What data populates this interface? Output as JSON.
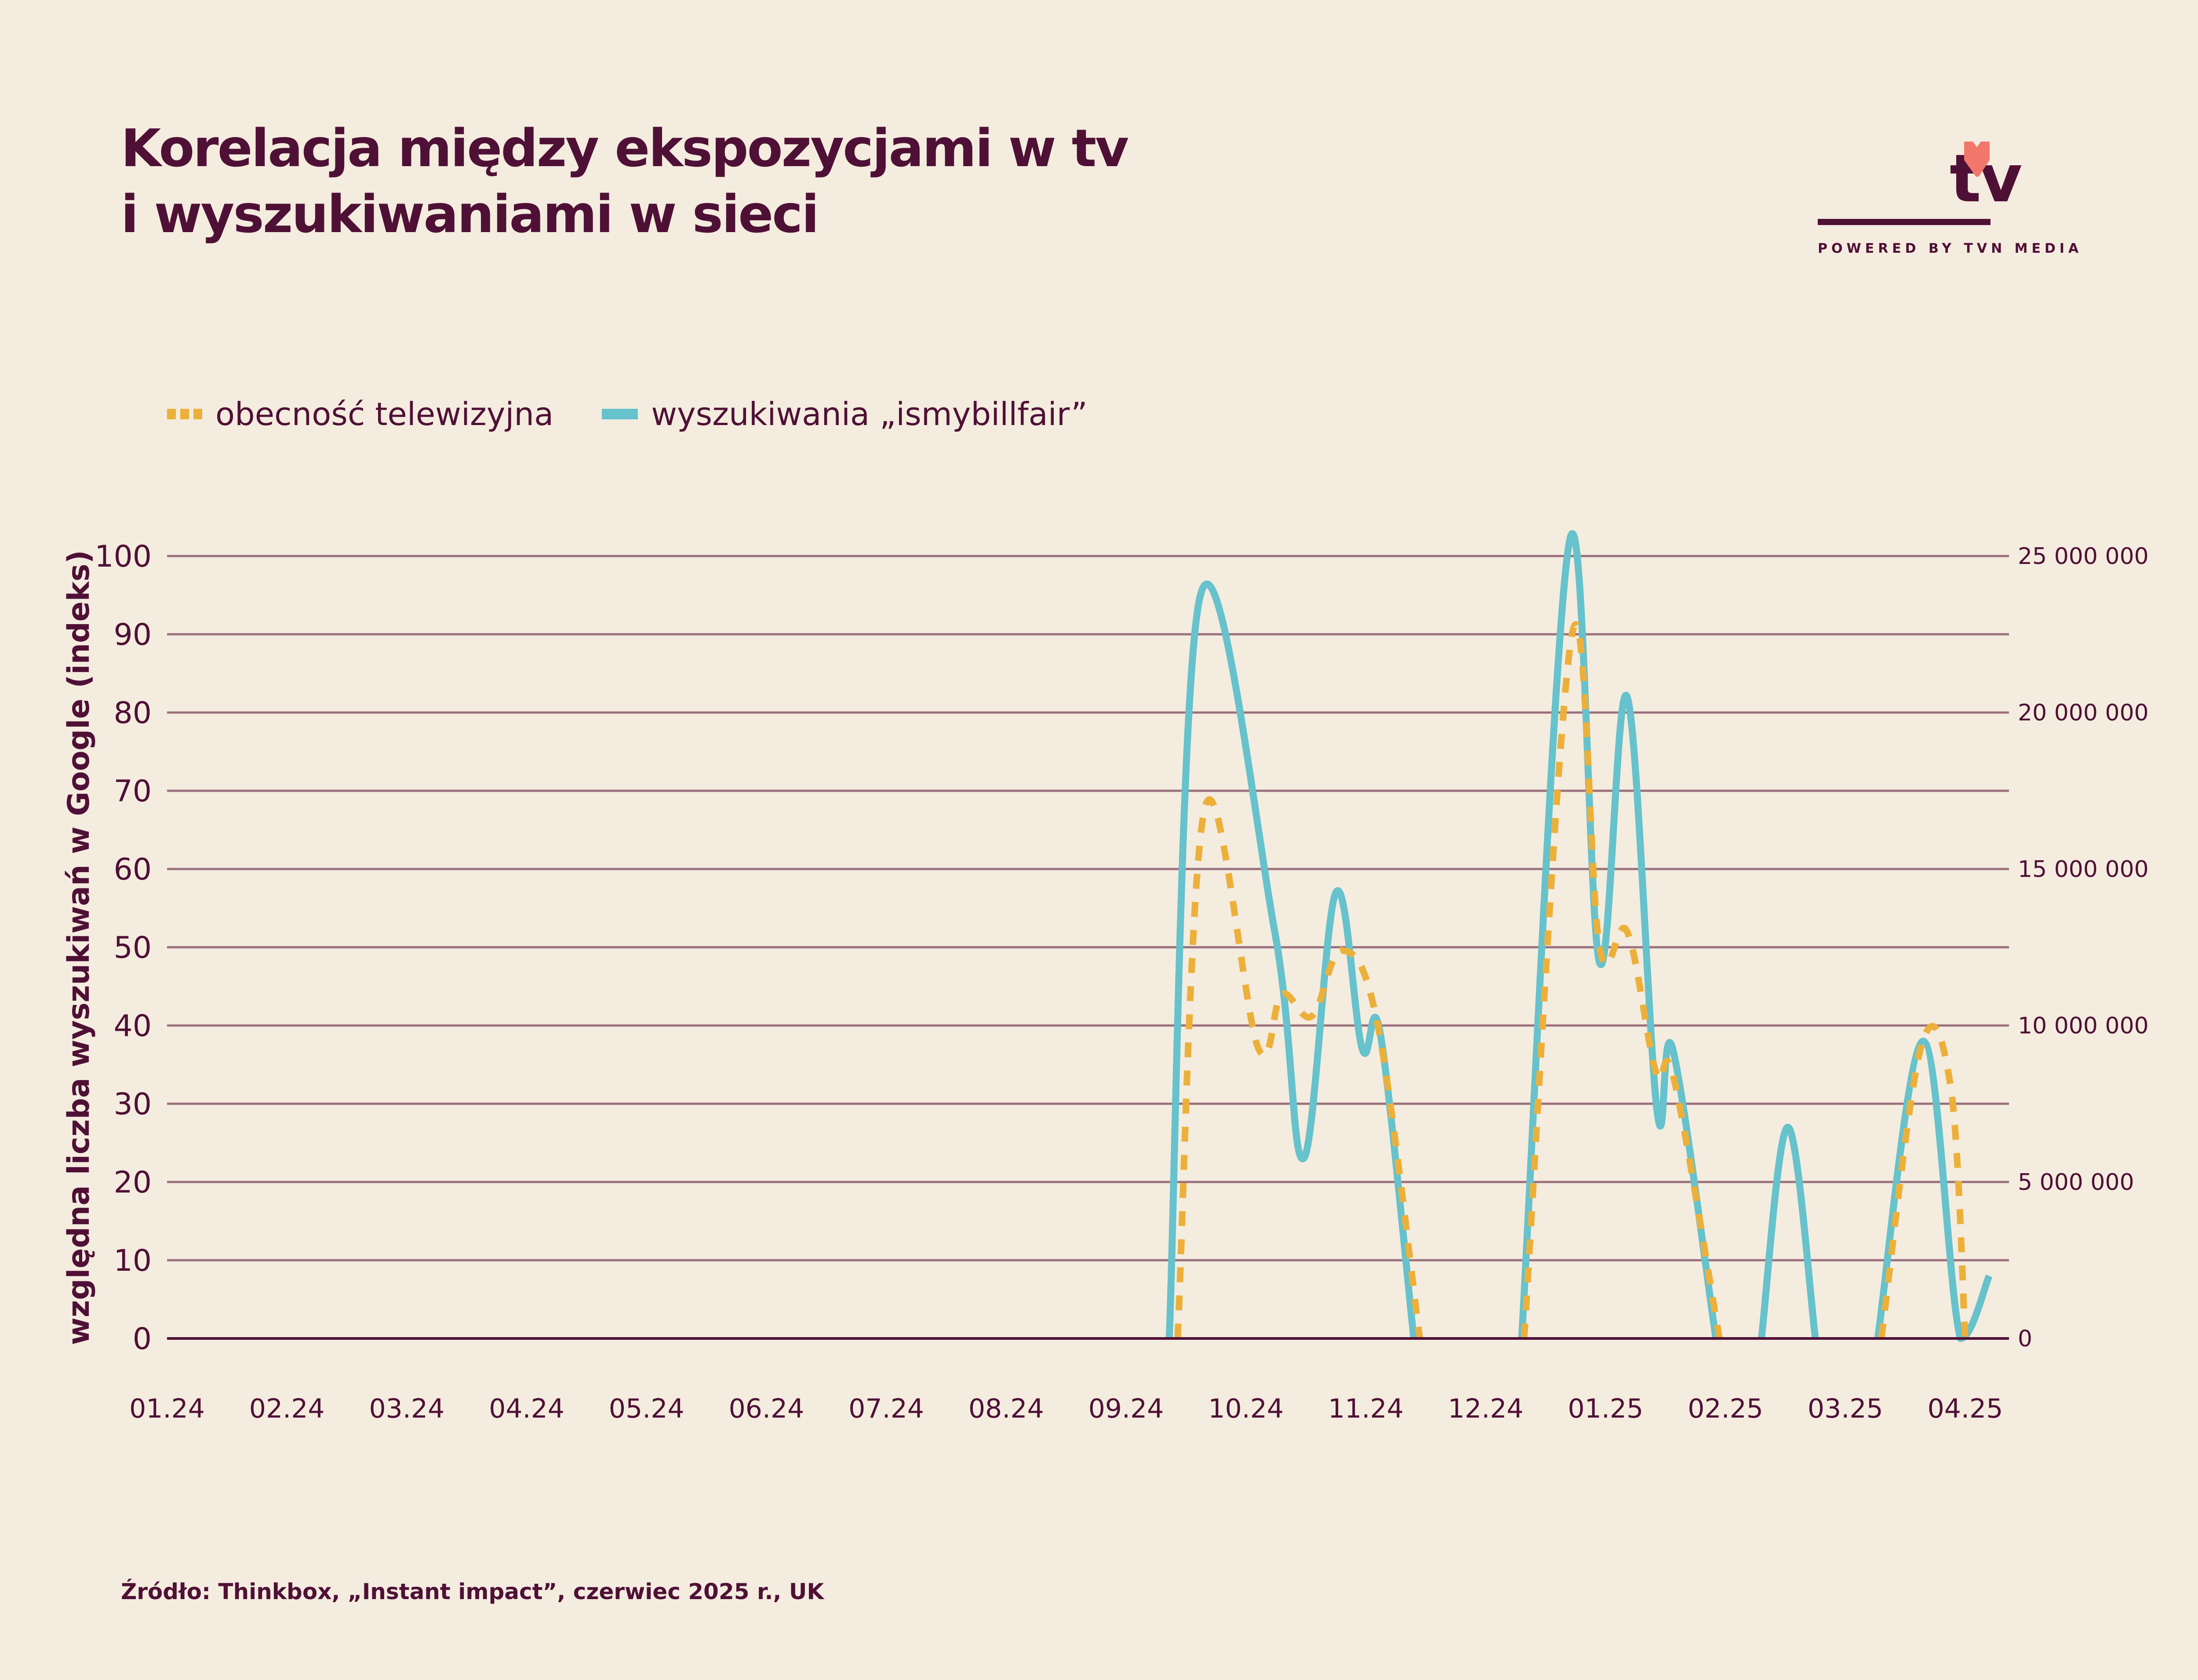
{
  "title": {
    "line1": "Korelacja między ekspozycjami w tv",
    "line2": "i wyszukiwaniami w sieci"
  },
  "logo": {
    "text": "tv",
    "tagline": "POWERED BY TVN MEDIA",
    "icon": "heart-icon",
    "accent_color": "#f2776a",
    "brand_color": "#4f1036"
  },
  "legend": {
    "tv_label": "obecność telewizyjna",
    "search_label": "wyszukiwania „ismybillfair”"
  },
  "source": "Źródło: Thinkbox, „Instant impact”, czerwiec 2025 r., UK",
  "chart_data": {
    "type": "line",
    "title": "Korelacja między ekspozycjami w tv i wyszukiwaniami w sieci",
    "xlabel": "",
    "ylabel": "względna liczba wyszukiwań w Google (indeks)",
    "y2label": "",
    "categories": [
      "01.24",
      "02.24",
      "03.24",
      "04.24",
      "05.24",
      "06.24",
      "07.24",
      "08.24",
      "09.24",
      "10.24",
      "11.24",
      "12.24",
      "01.25",
      "02.25",
      "03.25",
      "04.25"
    ],
    "ylim": [
      0,
      100
    ],
    "yticks": [
      0,
      10,
      20,
      30,
      40,
      50,
      60,
      70,
      80,
      90,
      100
    ],
    "y2lim": [
      0,
      25000000
    ],
    "y2ticks": [
      0,
      5000000,
      10000000,
      15000000,
      20000000,
      25000000
    ],
    "y2tick_labels": [
      "0",
      "5 000 000",
      "10 000 000",
      "15 000 000",
      "20 000 000",
      "25 000 000"
    ],
    "grid": true,
    "legend_position": "top-left",
    "x_unit": "months since 01.24",
    "series": [
      {
        "name": "wyszukiwania „ismybillfair”",
        "axis": "left",
        "style": "solid",
        "color": "#66c2cc",
        "segments": [
          [
            [
              8.36,
              0
            ],
            [
              8.62,
              95
            ],
            [
              9.24,
              52
            ],
            [
              9.48,
              23
            ],
            [
              9.75,
              57
            ],
            [
              9.97,
              37
            ],
            [
              10.12,
              39
            ],
            [
              10.4,
              0
            ]
          ],
          [
            [
              11.3,
              0
            ],
            [
              11.7,
              102
            ],
            [
              11.95,
              48
            ],
            [
              12.18,
              82
            ],
            [
              12.43,
              29
            ],
            [
              12.56,
              37
            ],
            [
              12.92,
              0
            ]
          ],
          [
            [
              13.3,
              0
            ],
            [
              13.52,
              27
            ],
            [
              13.75,
              0
            ]
          ],
          [
            [
              14.27,
              0
            ],
            [
              14.65,
              38
            ],
            [
              14.96,
              0
            ],
            [
              15.2,
              8
            ]
          ]
        ]
      },
      {
        "name": "obecność telewizyjna",
        "axis": "right",
        "style": "dashed",
        "color": "#ecb03a",
        "segments": [
          [
            [
              8.43,
              0
            ],
            [
              8.66,
              17000000
            ],
            [
              9.1,
              9300000
            ],
            [
              9.3,
              11000000
            ],
            [
              9.55,
              10300000
            ],
            [
              9.8,
              12400000
            ],
            [
              10.1,
              10000000
            ],
            [
              10.45,
              0
            ]
          ],
          [
            [
              11.32,
              0
            ],
            [
              11.72,
              22500000
            ],
            [
              11.95,
              12500000
            ],
            [
              12.18,
              13000000
            ],
            [
              12.42,
              8500000
            ],
            [
              12.57,
              8300000
            ],
            [
              12.95,
              0
            ]
          ],
          [
            [
              14.3,
              0
            ],
            [
              14.63,
              9300000
            ],
            [
              14.88,
              8000000
            ],
            [
              15.0,
              0
            ]
          ]
        ]
      }
    ]
  }
}
